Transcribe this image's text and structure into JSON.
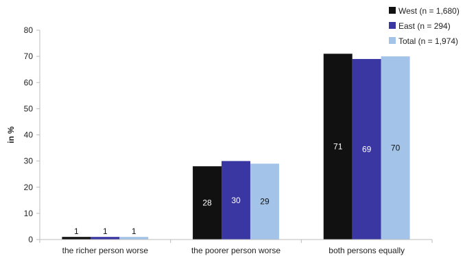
{
  "chart_data": {
    "type": "bar",
    "categories": [
      "the richer person worse",
      "the poorer person worse",
      "both persons equally"
    ],
    "series": [
      {
        "name": "West (n = 1,680)",
        "values": [
          1,
          28,
          71
        ],
        "color": "#111111",
        "label_color": "#ffffff"
      },
      {
        "name": "East (n = 294)",
        "values": [
          1,
          30,
          69
        ],
        "color": "#3a37a3",
        "label_color": "#ffffff"
      },
      {
        "name": "Total (n = 1,974)",
        "values": [
          1,
          29,
          70
        ],
        "color": "#a3c4e8",
        "label_color": "#111111"
      }
    ],
    "data_labels": [
      [
        "1",
        "28",
        "71"
      ],
      [
        "1",
        "30",
        "69"
      ],
      [
        "1",
        "29",
        "70"
      ]
    ],
    "ylabel": "in %",
    "ylim": [
      0,
      80
    ],
    "yticks": [
      0,
      10,
      20,
      30,
      40,
      50,
      60,
      70,
      80
    ],
    "grid": false,
    "legend": "top-right"
  }
}
